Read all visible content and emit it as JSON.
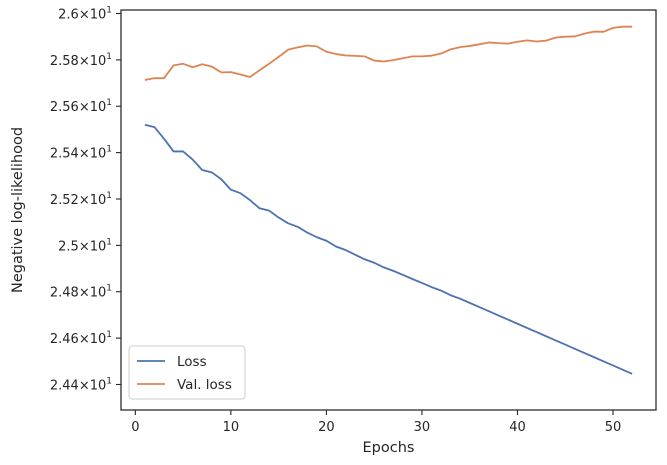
{
  "chart_data": {
    "type": "line",
    "xlabel": "Epochs",
    "ylabel": "Negative log-likelihood",
    "xlim": [
      -1.5,
      54.5
    ],
    "ylim": [
      24.29,
      26.015
    ],
    "xticks": [
      0,
      10,
      20,
      30,
      40,
      50
    ],
    "xtick_labels": [
      "0",
      "10",
      "20",
      "30",
      "40",
      "50"
    ],
    "yticks": [
      24.4,
      24.6,
      24.8,
      25.0,
      25.2,
      25.4,
      25.6,
      25.8,
      26.0
    ],
    "ytick_labels": [
      {
        "base": "2.44",
        "exp": "1"
      },
      {
        "base": "2.46",
        "exp": "1"
      },
      {
        "base": "2.48",
        "exp": "1"
      },
      {
        "base": "2.5",
        "exp": "1"
      },
      {
        "base": "2.52",
        "exp": "1"
      },
      {
        "base": "2.54",
        "exp": "1"
      },
      {
        "base": "2.56",
        "exp": "1"
      },
      {
        "base": "2.58",
        "exp": "1"
      },
      {
        "base": "2.6",
        "exp": "1"
      }
    ],
    "legend_position": "lower-left",
    "x": [
      1,
      2,
      3,
      4,
      5,
      6,
      7,
      8,
      9,
      10,
      11,
      12,
      13,
      14,
      15,
      16,
      17,
      18,
      19,
      20,
      21,
      22,
      23,
      24,
      25,
      26,
      27,
      28,
      29,
      30,
      31,
      32,
      33,
      34,
      35,
      36,
      37,
      38,
      39,
      40,
      41,
      42,
      43,
      44,
      45,
      46,
      47,
      48,
      49,
      50,
      51,
      52
    ],
    "series": [
      {
        "name": "Loss",
        "color": "#4c72b0",
        "values": [
          25.52,
          25.51,
          25.46,
          25.405,
          25.405,
          25.37,
          25.325,
          25.315,
          25.285,
          25.24,
          25.225,
          25.195,
          25.16,
          25.15,
          25.12,
          25.095,
          25.08,
          25.055,
          25.035,
          25.02,
          24.995,
          24.98,
          24.96,
          24.94,
          24.925,
          24.905,
          24.89,
          24.873,
          24.855,
          24.838,
          24.82,
          24.805,
          24.785,
          24.77,
          24.752,
          24.734,
          24.716,
          24.698,
          24.68,
          24.662,
          24.644,
          24.626,
          24.608,
          24.59,
          24.572,
          24.554,
          24.536,
          24.518,
          24.5,
          24.482,
          24.464,
          24.446
        ]
      },
      {
        "name": "Val. loss",
        "color": "#dd8452",
        "values": [
          25.713,
          25.721,
          25.721,
          25.776,
          25.783,
          25.768,
          25.781,
          25.771,
          25.746,
          25.747,
          25.737,
          25.726,
          25.755,
          25.783,
          25.813,
          25.844,
          25.854,
          25.862,
          25.858,
          25.835,
          25.825,
          25.819,
          25.817,
          25.815,
          25.797,
          25.793,
          25.799,
          25.807,
          25.815,
          25.815,
          25.818,
          25.827,
          25.845,
          25.855,
          25.86,
          25.867,
          25.875,
          25.872,
          25.87,
          25.878,
          25.884,
          25.879,
          25.883,
          25.896,
          25.9,
          25.901,
          25.913,
          25.922,
          25.921,
          25.938,
          25.943,
          25.943
        ]
      }
    ]
  }
}
